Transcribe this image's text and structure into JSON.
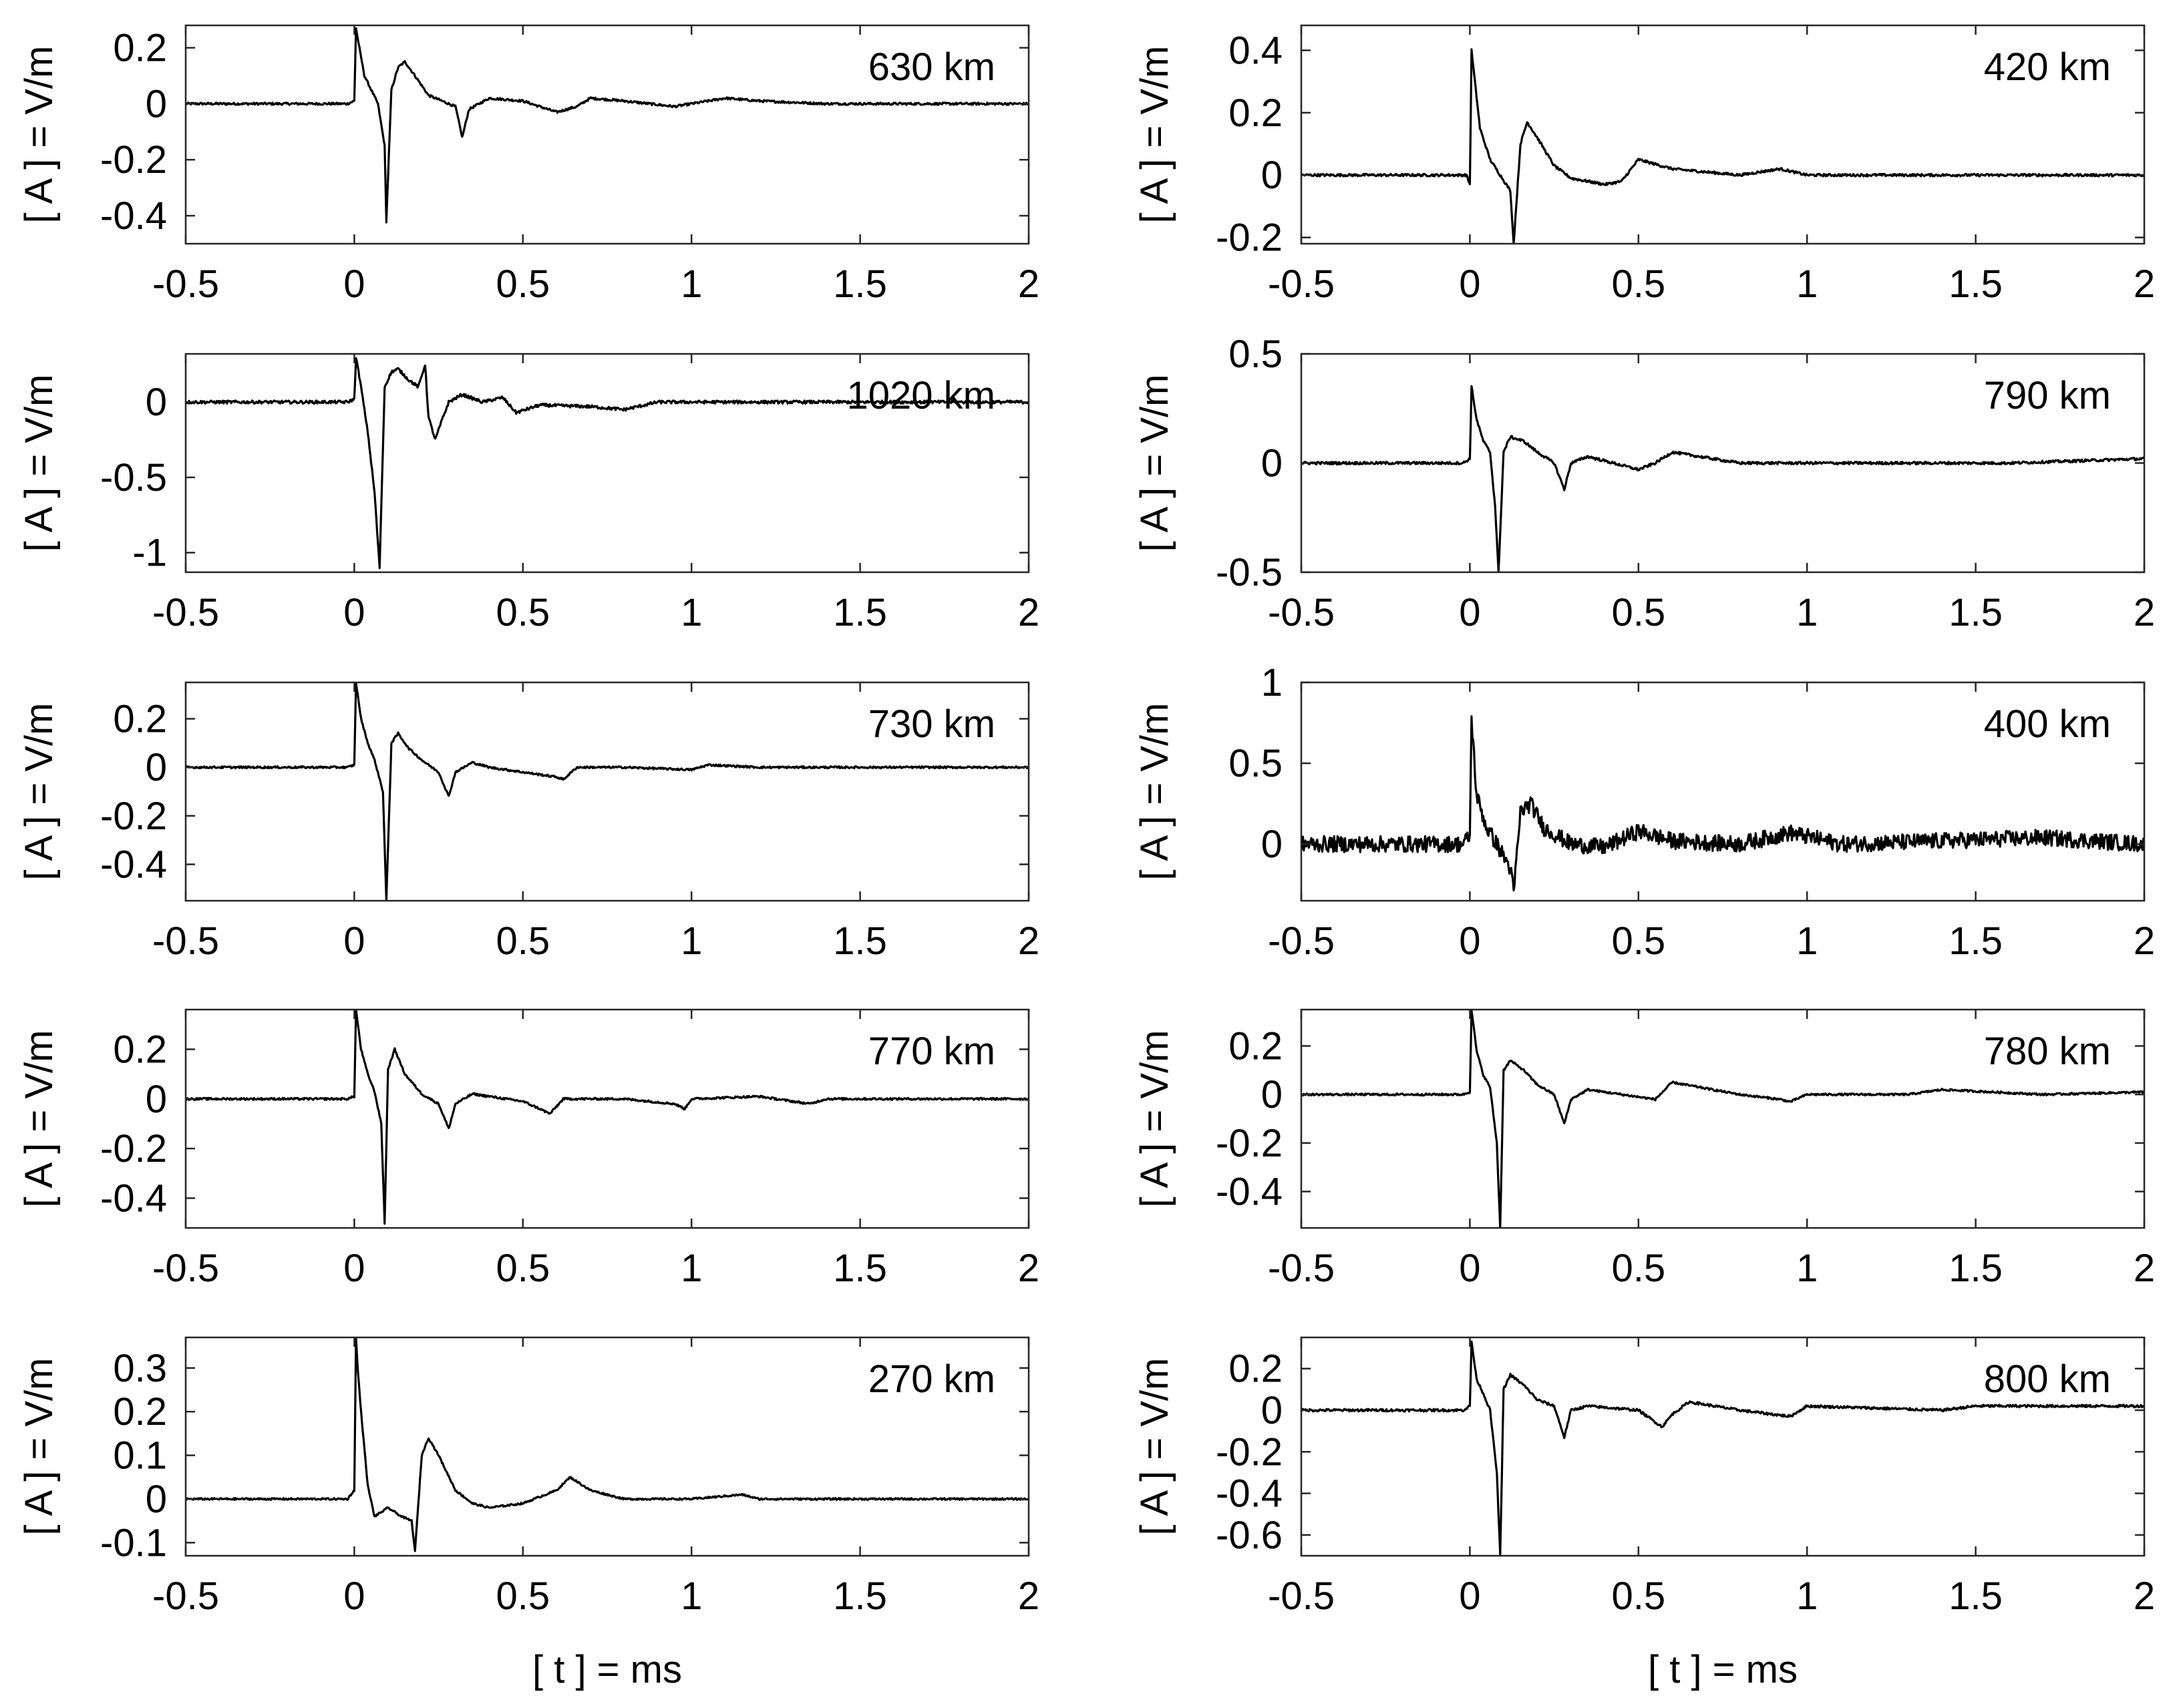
{
  "figure": {
    "x_axis_label": "[ t ] = ms",
    "y_axis_label": "[ A ] = V/m",
    "line_color": "#000000"
  },
  "chart_data": [
    {
      "type": "line",
      "title": "630 km",
      "position": "left-1",
      "xlim": [
        -0.5,
        2
      ],
      "ylim": [
        -0.5,
        0.28
      ],
      "xticks": [
        -0.5,
        0,
        0.5,
        1,
        1.5,
        2
      ],
      "xtick_labels": [
        "-0.5",
        "0",
        "0.5",
        "1",
        "1.5",
        "2"
      ],
      "yticks": [
        0.2,
        0,
        -0.2,
        -0.4
      ],
      "ytick_labels": [
        "0.2",
        "0",
        "-0.2",
        "-0.4"
      ],
      "xlabel": "",
      "ylabel": "[ A ] = V/m",
      "noise": 0.004,
      "series": [
        {
          "name": "630 km",
          "x": [
            -0.5,
            -0.02,
            0.0,
            0.005,
            0.015,
            0.03,
            0.05,
            0.07,
            0.09,
            0.095,
            0.11,
            0.13,
            0.15,
            0.18,
            0.22,
            0.26,
            0.3,
            0.32,
            0.34,
            0.4,
            0.5,
            0.6,
            0.66,
            0.7,
            0.8,
            0.95,
            1.1,
            1.2,
            1.4,
            2.0
          ],
          "y": [
            0.0,
            0.0,
            0.01,
            0.27,
            0.2,
            0.1,
            0.05,
            0.0,
            -0.15,
            -0.42,
            0.05,
            0.13,
            0.15,
            0.1,
            0.03,
            0.01,
            -0.01,
            -0.12,
            -0.02,
            0.02,
            0.01,
            -0.03,
            -0.01,
            0.02,
            0.01,
            -0.01,
            0.02,
            0.01,
            0.0,
            0.0
          ]
        }
      ]
    },
    {
      "type": "line",
      "title": "420 km",
      "position": "right-1",
      "xlim": [
        -0.5,
        2
      ],
      "ylim": [
        -0.22,
        0.48
      ],
      "xticks": [
        -0.5,
        0,
        0.5,
        1,
        1.5,
        2
      ],
      "xtick_labels": [
        "-0.5",
        "0",
        "0.5",
        "1",
        "1.5",
        "2"
      ],
      "yticks": [
        0.4,
        0.2,
        0,
        -0.2
      ],
      "ytick_labels": [
        "0.4",
        "0.2",
        "0",
        "-0.2"
      ],
      "xlabel": "",
      "ylabel": "[ A ] = V/m",
      "noise": 0.004,
      "series": [
        {
          "name": "420 km",
          "x": [
            -0.5,
            -0.01,
            0.0,
            0.005,
            0.015,
            0.03,
            0.06,
            0.09,
            0.12,
            0.13,
            0.15,
            0.17,
            0.2,
            0.25,
            0.3,
            0.4,
            0.45,
            0.5,
            0.6,
            0.8,
            0.92,
            1.0,
            1.2,
            1.5,
            2.0
          ],
          "y": [
            0.0,
            0.0,
            -0.03,
            0.4,
            0.3,
            0.15,
            0.05,
            0.0,
            -0.05,
            -0.22,
            0.1,
            0.17,
            0.12,
            0.03,
            -0.01,
            -0.03,
            -0.02,
            0.05,
            0.02,
            0.0,
            0.02,
            0.0,
            0.0,
            0.0,
            0.0
          ]
        }
      ]
    },
    {
      "type": "line",
      "title": "1020 km",
      "position": "left-2",
      "xlim": [
        -0.5,
        2
      ],
      "ylim": [
        -1.13,
        0.32
      ],
      "xticks": [
        -0.5,
        0,
        0.5,
        1,
        1.5,
        2
      ],
      "xtick_labels": [
        "-0.5",
        "0",
        "0.5",
        "1",
        "1.5",
        "2"
      ],
      "yticks": [
        0,
        -0.5,
        -1
      ],
      "ytick_labels": [
        "0",
        "-0.5",
        "-1"
      ],
      "xlabel": "",
      "ylabel": "[ A ] = V/m",
      "noise": 0.01,
      "series": [
        {
          "name": "1020 km",
          "x": [
            -0.5,
            -0.02,
            0.0,
            0.005,
            0.02,
            0.04,
            0.06,
            0.075,
            0.09,
            0.11,
            0.13,
            0.16,
            0.19,
            0.21,
            0.22,
            0.24,
            0.26,
            0.28,
            0.32,
            0.38,
            0.44,
            0.48,
            0.55,
            0.7,
            0.8,
            0.9,
            1.1,
            1.3,
            1.6,
            2.0
          ],
          "y": [
            0.0,
            0.0,
            0.02,
            0.3,
            0.1,
            -0.2,
            -0.6,
            -1.1,
            0.1,
            0.2,
            0.22,
            0.15,
            0.1,
            0.25,
            -0.1,
            -0.25,
            -0.12,
            0.0,
            0.05,
            0.0,
            0.03,
            -0.07,
            -0.02,
            -0.03,
            -0.05,
            0.0,
            0.0,
            0.0,
            0.0,
            0.0
          ]
        }
      ]
    },
    {
      "type": "line",
      "title": "790 km",
      "position": "right-2",
      "xlim": [
        -0.5,
        2
      ],
      "ylim": [
        -0.5,
        0.5
      ],
      "xticks": [
        -0.5,
        0,
        0.5,
        1,
        1.5,
        2
      ],
      "xtick_labels": [
        "-0.5",
        "0",
        "0.5",
        "1",
        "1.5",
        "2"
      ],
      "yticks": [
        0.5,
        0,
        -0.5
      ],
      "ytick_labels": [
        "0.5",
        "0",
        "-0.5"
      ],
      "xlabel": "",
      "ylabel": "[ A ] = V/m",
      "noise": 0.006,
      "series": [
        {
          "name": "790 km",
          "x": [
            -0.5,
            -0.02,
            0.0,
            0.005,
            0.02,
            0.04,
            0.06,
            0.075,
            0.085,
            0.1,
            0.12,
            0.16,
            0.2,
            0.25,
            0.28,
            0.3,
            0.35,
            0.5,
            0.55,
            0.6,
            0.8,
            1.0,
            1.3,
            1.6,
            2.0
          ],
          "y": [
            0.0,
            0.0,
            0.02,
            0.35,
            0.2,
            0.1,
            0.05,
            -0.2,
            -0.5,
            0.05,
            0.12,
            0.1,
            0.05,
            0.0,
            -0.12,
            0.0,
            0.03,
            -0.03,
            0.0,
            0.05,
            0.0,
            0.0,
            0.0,
            0.0,
            0.02
          ]
        }
      ]
    },
    {
      "type": "line",
      "title": "730 km",
      "position": "left-3",
      "xlim": [
        -0.5,
        2
      ],
      "ylim": [
        -0.55,
        0.35
      ],
      "xticks": [
        -0.5,
        0,
        0.5,
        1,
        1.5,
        2
      ],
      "xtick_labels": [
        "-0.5",
        "0",
        "0.5",
        "1",
        "1.5",
        "2"
      ],
      "yticks": [
        0.2,
        0,
        -0.2,
        -0.4
      ],
      "ytick_labels": [
        "0.2",
        "0",
        "-0.2",
        "-0.4"
      ],
      "xlabel": "",
      "ylabel": "[ A ] = V/m",
      "noise": 0.004,
      "series": [
        {
          "name": "730 km",
          "x": [
            -0.5,
            -0.02,
            0.0,
            0.005,
            0.02,
            0.04,
            0.06,
            0.085,
            0.095,
            0.11,
            0.13,
            0.16,
            0.2,
            0.25,
            0.28,
            0.3,
            0.35,
            0.4,
            0.5,
            0.6,
            0.62,
            0.66,
            0.8,
            1.0,
            1.05,
            1.2,
            1.5,
            2.0
          ],
          "y": [
            0.0,
            0.0,
            0.01,
            0.35,
            0.2,
            0.1,
            0.03,
            -0.1,
            -0.55,
            0.1,
            0.14,
            0.08,
            0.03,
            -0.02,
            -0.12,
            -0.02,
            0.02,
            0.0,
            -0.02,
            -0.04,
            -0.05,
            0.0,
            0.0,
            -0.01,
            0.01,
            0.0,
            0.0,
            0.0
          ]
        }
      ]
    },
    {
      "type": "line",
      "title": "400 km",
      "position": "right-3",
      "xlim": [
        -0.5,
        2
      ],
      "ylim": [
        -0.35,
        1.0
      ],
      "xticks": [
        -0.5,
        0,
        0.5,
        1,
        1.5,
        2
      ],
      "xtick_labels": [
        "-0.5",
        "0",
        "0.5",
        "1",
        "1.5",
        "2"
      ],
      "yticks": [
        1,
        0.5,
        0
      ],
      "ytick_labels": [
        "1",
        "0.5",
        "0"
      ],
      "xlabel": "",
      "ylabel": "[ A ] = V/m",
      "noise": 0.05,
      "series": [
        {
          "name": "400 km",
          "x": [
            -0.5,
            -0.02,
            0.0,
            0.005,
            0.02,
            0.05,
            0.08,
            0.12,
            0.13,
            0.15,
            0.18,
            0.22,
            0.3,
            0.4,
            0.5,
            0.6,
            0.8,
            0.95,
            1.1,
            1.4,
            1.7,
            2.0
          ],
          "y": [
            0.0,
            0.0,
            0.05,
            0.78,
            0.3,
            0.1,
            0.0,
            -0.15,
            -0.3,
            0.2,
            0.25,
            0.1,
            0.0,
            -0.02,
            0.08,
            0.02,
            0.0,
            0.07,
            0.0,
            0.02,
            0.04,
            0.0
          ]
        }
      ]
    },
    {
      "type": "line",
      "title": "770 km",
      "position": "left-4",
      "xlim": [
        -0.5,
        2
      ],
      "ylim": [
        -0.52,
        0.36
      ],
      "xticks": [
        -0.5,
        0,
        0.5,
        1,
        1.5,
        2
      ],
      "xtick_labels": [
        "-0.5",
        "0",
        "0.5",
        "1",
        "1.5",
        "2"
      ],
      "yticks": [
        0.2,
        0,
        -0.2,
        -0.4
      ],
      "ytick_labels": [
        "0.2",
        "0",
        "-0.2",
        "-0.4"
      ],
      "xlabel": "",
      "ylabel": "[ A ] = V/m",
      "noise": 0.004,
      "series": [
        {
          "name": "770 km",
          "x": [
            -0.5,
            -0.02,
            0.0,
            0.005,
            0.02,
            0.04,
            0.06,
            0.08,
            0.09,
            0.1,
            0.12,
            0.15,
            0.2,
            0.25,
            0.28,
            0.3,
            0.35,
            0.5,
            0.55,
            0.58,
            0.62,
            0.8,
            0.95,
            0.98,
            1.0,
            1.2,
            1.35,
            1.4,
            1.6,
            2.0
          ],
          "y": [
            0.0,
            0.0,
            0.01,
            0.36,
            0.2,
            0.1,
            0.03,
            -0.1,
            -0.5,
            0.12,
            0.2,
            0.1,
            0.02,
            -0.02,
            -0.12,
            -0.02,
            0.02,
            -0.01,
            -0.04,
            -0.06,
            0.0,
            0.0,
            -0.02,
            -0.04,
            0.0,
            0.01,
            -0.02,
            0.0,
            0.0,
            0.0
          ]
        }
      ]
    },
    {
      "type": "line",
      "title": "780 km",
      "position": "right-4",
      "xlim": [
        -0.5,
        2
      ],
      "ylim": [
        -0.55,
        0.35
      ],
      "xticks": [
        -0.5,
        0,
        0.5,
        1,
        1.5,
        2
      ],
      "xtick_labels": [
        "-0.5",
        "0",
        "0.5",
        "1",
        "1.5",
        "2"
      ],
      "yticks": [
        0.2,
        0,
        -0.2,
        -0.4
      ],
      "ytick_labels": [
        "0.2",
        "0",
        "-0.2",
        "-0.4"
      ],
      "xlabel": "",
      "ylabel": "[ A ] = V/m",
      "noise": 0.004,
      "series": [
        {
          "name": "780 km",
          "x": [
            -0.5,
            -0.02,
            0.0,
            0.005,
            0.02,
            0.04,
            0.06,
            0.08,
            0.09,
            0.1,
            0.12,
            0.16,
            0.2,
            0.25,
            0.28,
            0.3,
            0.35,
            0.5,
            0.55,
            0.6,
            0.8,
            0.92,
            0.95,
            1.0,
            1.3,
            1.4,
            1.7,
            2.0
          ],
          "y": [
            0.0,
            0.0,
            0.01,
            0.35,
            0.18,
            0.08,
            0.03,
            -0.2,
            -0.55,
            0.1,
            0.14,
            0.1,
            0.04,
            0.0,
            -0.12,
            -0.02,
            0.02,
            -0.01,
            -0.02,
            0.05,
            0.0,
            -0.02,
            -0.03,
            0.0,
            0.0,
            0.02,
            0.0,
            0.01
          ]
        }
      ]
    },
    {
      "type": "line",
      "title": "270 km",
      "position": "left-5",
      "xlim": [
        -0.5,
        2
      ],
      "ylim": [
        -0.13,
        0.37
      ],
      "xticks": [
        -0.5,
        0,
        0.5,
        1,
        1.5,
        2
      ],
      "xtick_labels": [
        "-0.5",
        "0",
        "0.5",
        "1",
        "1.5",
        "2"
      ],
      "yticks": [
        0.3,
        0.2,
        0.1,
        0,
        -0.1
      ],
      "ytick_labels": [
        "0.3",
        "0.2",
        "0.1",
        "0",
        "-0.1"
      ],
      "xlabel": "[ t ] = ms",
      "ylabel": "[ A ] = V/m",
      "noise": 0.002,
      "series": [
        {
          "name": "270 km",
          "x": [
            -0.5,
            -0.02,
            0.0,
            0.005,
            0.01,
            0.02,
            0.04,
            0.06,
            0.1,
            0.14,
            0.17,
            0.18,
            0.2,
            0.22,
            0.25,
            0.3,
            0.35,
            0.4,
            0.5,
            0.6,
            0.64,
            0.7,
            0.8,
            1.0,
            1.15,
            1.2,
            1.3,
            1.5,
            2.0
          ],
          "y": [
            0.0,
            0.0,
            0.02,
            0.37,
            0.3,
            0.2,
            0.03,
            -0.04,
            -0.02,
            -0.04,
            -0.05,
            -0.12,
            0.1,
            0.14,
            0.1,
            0.02,
            -0.01,
            -0.02,
            -0.01,
            0.02,
            0.05,
            0.02,
            0.0,
            0.0,
            0.01,
            0.0,
            0.0,
            0.0,
            0.0
          ]
        }
      ]
    },
    {
      "type": "line",
      "title": "800 km",
      "position": "right-5",
      "xlim": [
        -0.5,
        2
      ],
      "ylim": [
        -0.7,
        0.35
      ],
      "xticks": [
        -0.5,
        0,
        0.5,
        1,
        1.5,
        2
      ],
      "xtick_labels": [
        "-0.5",
        "0",
        "0.5",
        "1",
        "1.5",
        "2"
      ],
      "yticks": [
        0.2,
        0,
        -0.2,
        -0.4,
        -0.6
      ],
      "ytick_labels": [
        "0.2",
        "0",
        "-0.2",
        "-0.4",
        "-0.6"
      ],
      "xlabel": "[ t ] = ms",
      "ylabel": "[ A ] = V/m",
      "noise": 0.006,
      "series": [
        {
          "name": "800 km",
          "x": [
            -0.5,
            -0.02,
            0.0,
            0.005,
            0.02,
            0.04,
            0.06,
            0.08,
            0.09,
            0.1,
            0.12,
            0.16,
            0.2,
            0.25,
            0.28,
            0.3,
            0.35,
            0.5,
            0.57,
            0.6,
            0.65,
            0.8,
            0.95,
            1.0,
            1.4,
            1.5,
            2.0
          ],
          "y": [
            0.0,
            0.0,
            0.02,
            0.33,
            0.15,
            0.08,
            0.0,
            -0.3,
            -0.7,
            0.1,
            0.17,
            0.12,
            0.05,
            0.02,
            -0.13,
            0.0,
            0.02,
            0.0,
            -0.08,
            -0.02,
            0.04,
            0.0,
            -0.03,
            0.02,
            0.0,
            0.02,
            0.02
          ]
        }
      ]
    }
  ]
}
